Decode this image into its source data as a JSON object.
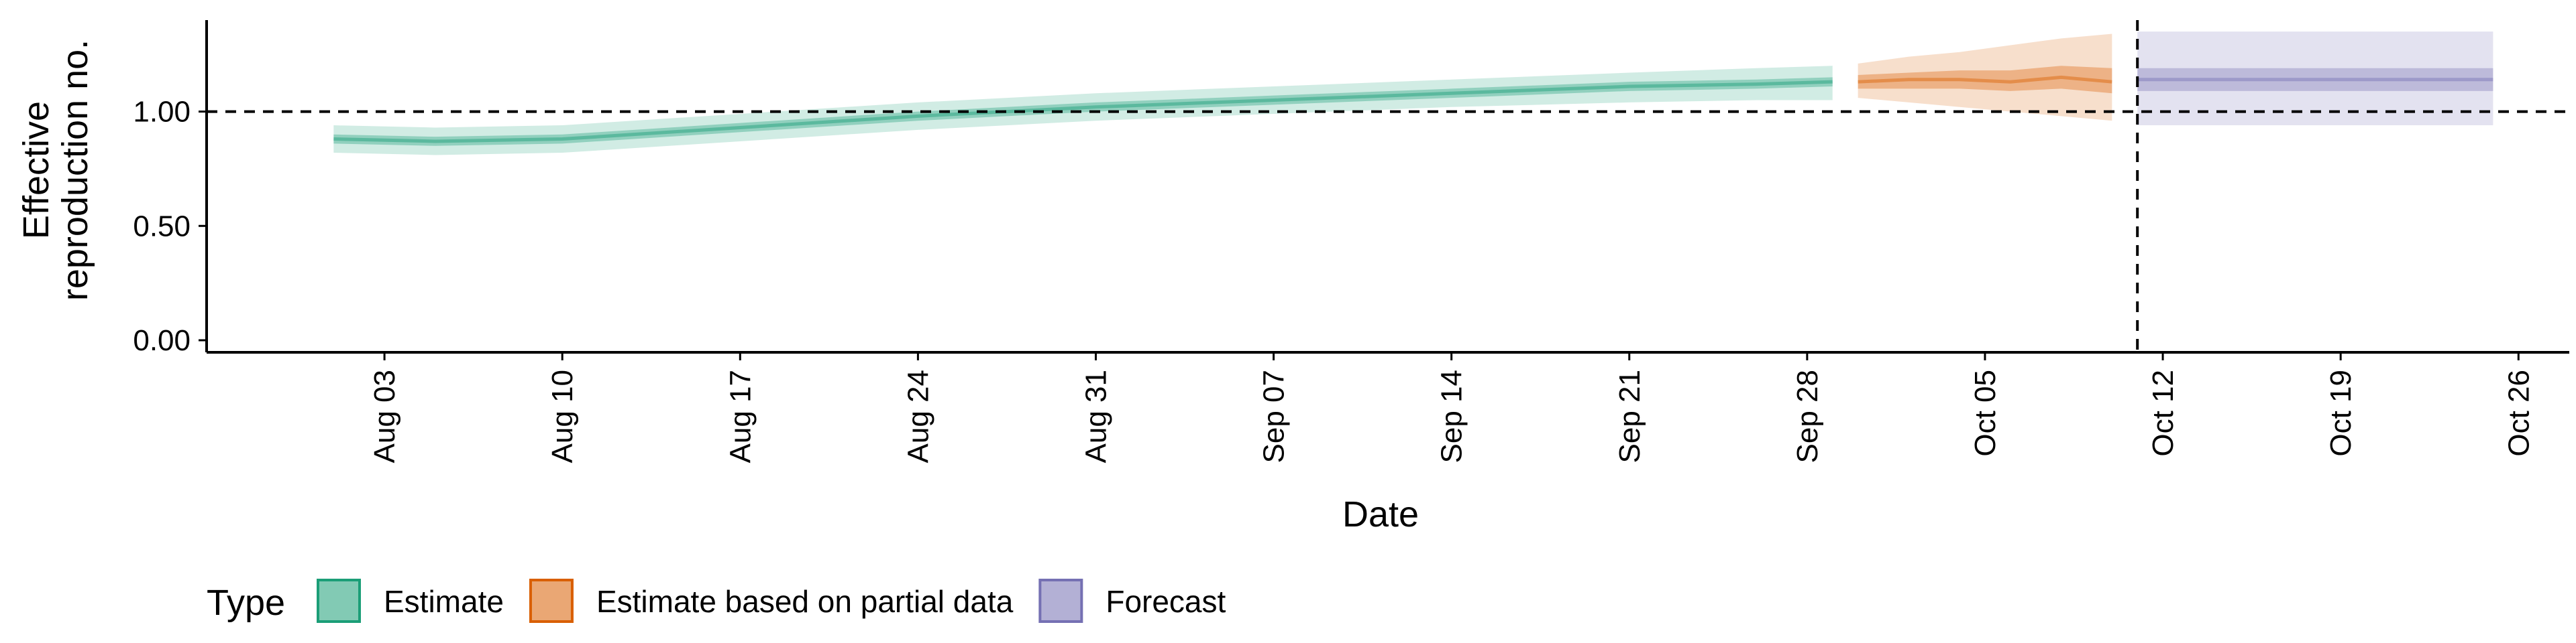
{
  "chart_data": {
    "type": "area",
    "xlabel": "Date",
    "ylabel_lines": [
      "Effective",
      "reproduction no."
    ],
    "ylim": [
      0,
      1.4
    ],
    "yticks": [
      {
        "value": 0.0,
        "label": "0.00"
      },
      {
        "value": 0.5,
        "label": "0.50"
      },
      {
        "value": 1.0,
        "label": "1.00"
      }
    ],
    "xlim": [
      "2021-07-27",
      "2021-10-28"
    ],
    "xticks": [
      {
        "date": "2021-08-03",
        "label": "Aug 03"
      },
      {
        "date": "2021-08-10",
        "label": "Aug 10"
      },
      {
        "date": "2021-08-17",
        "label": "Aug 17"
      },
      {
        "date": "2021-08-24",
        "label": "Aug 24"
      },
      {
        "date": "2021-08-31",
        "label": "Aug 31"
      },
      {
        "date": "2021-09-07",
        "label": "Sep 07"
      },
      {
        "date": "2021-09-14",
        "label": "Sep 14"
      },
      {
        "date": "2021-09-21",
        "label": "Sep 21"
      },
      {
        "date": "2021-09-28",
        "label": "Sep 28"
      },
      {
        "date": "2021-10-05",
        "label": "Oct 05"
      },
      {
        "date": "2021-10-12",
        "label": "Oct 12"
      },
      {
        "date": "2021-10-19",
        "label": "Oct 19"
      },
      {
        "date": "2021-10-26",
        "label": "Oct 26"
      }
    ],
    "reference_line_y": 1.0,
    "vertical_line_x": "2021-10-11",
    "legend": {
      "title": "Type",
      "position": "bottom"
    },
    "series": [
      {
        "name": "Estimate",
        "color": "#1b9e77",
        "outer_opacity": 0.2,
        "inner_opacity": 0.35,
        "points": [
          {
            "x": "2021-08-01",
            "median": 0.88,
            "lower90": 0.82,
            "upper90": 0.94,
            "lower50": 0.86,
            "upper50": 0.9
          },
          {
            "x": "2021-08-05",
            "median": 0.87,
            "lower90": 0.81,
            "upper90": 0.93,
            "lower50": 0.85,
            "upper50": 0.89
          },
          {
            "x": "2021-08-10",
            "median": 0.88,
            "lower90": 0.82,
            "upper90": 0.94,
            "lower50": 0.86,
            "upper50": 0.9
          },
          {
            "x": "2021-08-17",
            "median": 0.93,
            "lower90": 0.87,
            "upper90": 0.99,
            "lower50": 0.91,
            "upper50": 0.95
          },
          {
            "x": "2021-08-24",
            "median": 0.98,
            "lower90": 0.92,
            "upper90": 1.04,
            "lower50": 0.96,
            "upper50": 1.0
          },
          {
            "x": "2021-08-31",
            "median": 1.02,
            "lower90": 0.96,
            "upper90": 1.08,
            "lower50": 1.0,
            "upper50": 1.04
          },
          {
            "x": "2021-09-07",
            "median": 1.05,
            "lower90": 0.99,
            "upper90": 1.11,
            "lower50": 1.03,
            "upper50": 1.07
          },
          {
            "x": "2021-09-14",
            "median": 1.08,
            "lower90": 1.02,
            "upper90": 1.14,
            "lower50": 1.06,
            "upper50": 1.1
          },
          {
            "x": "2021-09-21",
            "median": 1.11,
            "lower90": 1.04,
            "upper90": 1.17,
            "lower50": 1.09,
            "upper50": 1.13
          },
          {
            "x": "2021-09-26",
            "median": 1.12,
            "lower90": 1.05,
            "upper90": 1.19,
            "lower50": 1.1,
            "upper50": 1.14
          },
          {
            "x": "2021-09-29",
            "median": 1.13,
            "lower90": 1.05,
            "upper90": 1.2,
            "lower50": 1.11,
            "upper50": 1.15
          }
        ]
      },
      {
        "name": "Estimate based on partial data",
        "color": "#d95f02",
        "outer_opacity": 0.2,
        "inner_opacity": 0.35,
        "points": [
          {
            "x": "2021-09-30",
            "median": 1.13,
            "lower90": 1.06,
            "upper90": 1.21,
            "lower50": 1.1,
            "upper50": 1.16
          },
          {
            "x": "2021-10-02",
            "median": 1.14,
            "lower90": 1.04,
            "upper90": 1.24,
            "lower50": 1.1,
            "upper50": 1.17
          },
          {
            "x": "2021-10-04",
            "median": 1.14,
            "lower90": 1.02,
            "upper90": 1.26,
            "lower50": 1.1,
            "upper50": 1.18
          },
          {
            "x": "2021-10-06",
            "median": 1.13,
            "lower90": 1.0,
            "upper90": 1.29,
            "lower50": 1.09,
            "upper50": 1.18
          },
          {
            "x": "2021-10-08",
            "median": 1.15,
            "lower90": 0.98,
            "upper90": 1.32,
            "lower50": 1.1,
            "upper50": 1.2
          },
          {
            "x": "2021-10-10",
            "median": 1.13,
            "lower90": 0.96,
            "upper90": 1.34,
            "lower50": 1.08,
            "upper50": 1.19
          }
        ]
      },
      {
        "name": "Forecast",
        "color": "#7570b3",
        "outer_opacity": 0.2,
        "inner_opacity": 0.35,
        "points": [
          {
            "x": "2021-10-11",
            "median": 1.14,
            "lower90": 0.94,
            "upper90": 1.35,
            "lower50": 1.09,
            "upper50": 1.19
          },
          {
            "x": "2021-10-25",
            "median": 1.14,
            "lower90": 0.94,
            "upper90": 1.35,
            "lower50": 1.09,
            "upper50": 1.19
          }
        ]
      }
    ]
  }
}
